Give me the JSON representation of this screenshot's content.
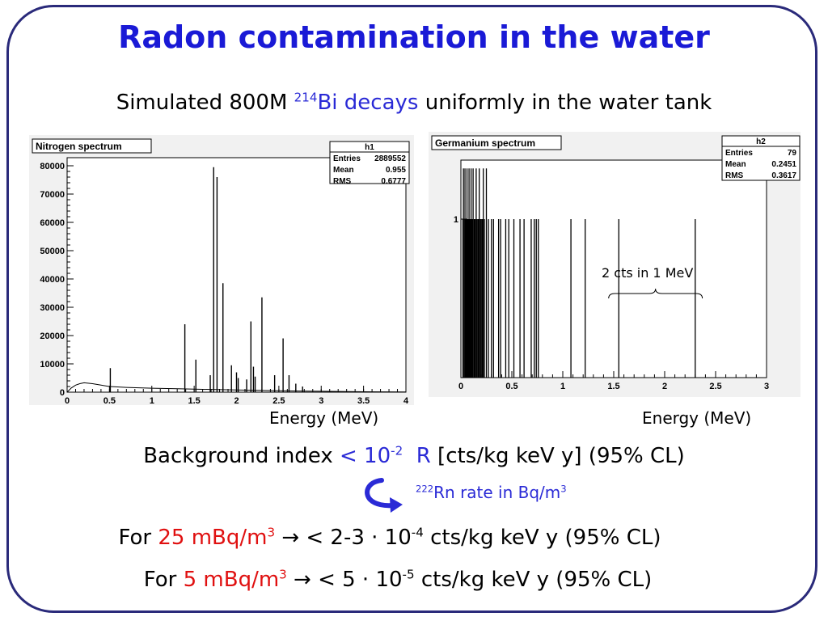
{
  "slide": {
    "title": "Radon contamination in the water",
    "subtitle": {
      "pre": "Simulated 800M ",
      "iso": "214",
      "element": "Bi",
      "mid": " decays",
      "post": " uniformly in the water tank"
    },
    "background": {
      "pre": "Background index ",
      "lt": "< 10",
      "exp": "-2",
      "R": "R",
      "post": " [cts/kg keV y] (95% CL)"
    },
    "rn_note": {
      "iso": "222",
      "text": "Rn rate in Bq/m",
      "exp": "3"
    },
    "for1": {
      "pre": "For ",
      "rate": "25 mBq/m",
      "rate_exp": "3",
      "arrow": " → < 2-3 · 10",
      "exp": "-4",
      "post": "  cts/kg keV y (95% CL)"
    },
    "for2": {
      "pre": "For ",
      "rate": "5 mBq/m",
      "rate_exp": "3",
      "arrow": " → < 5 · 10",
      "exp": "-5",
      "post": "  cts/kg keV y (95% CL)"
    },
    "colors": {
      "title": "#1a1ad6",
      "blue": "#2a2ad6",
      "red": "#e01010",
      "frame": "#2a2a7a"
    }
  },
  "chart_data": [
    {
      "type": "bar",
      "title": "Nitrogen spectrum",
      "xlabel": "Energy (MeV)",
      "xlim": [
        0,
        4
      ],
      "ylim": [
        0,
        80000
      ],
      "xticks": [
        "0",
        "0.5",
        "1",
        "1.5",
        "2",
        "2.5",
        "3",
        "3.5",
        "4"
      ],
      "yticks": [
        "0",
        "10000",
        "20000",
        "30000",
        "40000",
        "50000",
        "60000",
        "70000",
        "80000"
      ],
      "stats": {
        "name": "h1",
        "entries_label": "Entries",
        "entries": "2889552",
        "mean_label": "Mean",
        "mean": "0.955",
        "rms_label": "RMS",
        "rms": "0.6777"
      },
      "continuum": [
        [
          0,
          0
        ],
        [
          0.05,
          1500
        ],
        [
          0.1,
          2500
        ],
        [
          0.15,
          3000
        ],
        [
          0.2,
          3300
        ],
        [
          0.3,
          3000
        ],
        [
          0.4,
          2500
        ],
        [
          0.5,
          2000
        ],
        [
          0.7,
          1700
        ],
        [
          1.0,
          1400
        ],
        [
          1.3,
          1200
        ],
        [
          1.6,
          1000
        ],
        [
          2.0,
          800
        ],
        [
          2.5,
          500
        ],
        [
          3.0,
          300
        ],
        [
          3.5,
          150
        ],
        [
          4.0,
          80
        ]
      ],
      "peaks": [
        {
          "x": 0.51,
          "y": 8500
        },
        {
          "x": 1.39,
          "y": 24000
        },
        {
          "x": 1.52,
          "y": 11500
        },
        {
          "x": 1.69,
          "y": 6000
        },
        {
          "x": 1.73,
          "y": 79500
        },
        {
          "x": 1.77,
          "y": 76000
        },
        {
          "x": 1.84,
          "y": 38500
        },
        {
          "x": 1.94,
          "y": 9500
        },
        {
          "x": 2.0,
          "y": 7000
        },
        {
          "x": 2.02,
          "y": 5000
        },
        {
          "x": 2.12,
          "y": 4500
        },
        {
          "x": 2.17,
          "y": 25000
        },
        {
          "x": 2.2,
          "y": 9000
        },
        {
          "x": 2.22,
          "y": 5500
        },
        {
          "x": 2.3,
          "y": 33500
        },
        {
          "x": 2.45,
          "y": 6000
        },
        {
          "x": 2.55,
          "y": 19000
        },
        {
          "x": 2.62,
          "y": 6000
        },
        {
          "x": 2.7,
          "y": 3000
        },
        {
          "x": 2.78,
          "y": 2000
        }
      ]
    },
    {
      "type": "bar",
      "title": "Germanium spectrum",
      "xlabel": "Energy (MeV)",
      "xlim": [
        0,
        3
      ],
      "ylim": [
        0,
        1.5
      ],
      "xticks": [
        "0",
        "0.5",
        "1",
        "1.5",
        "2",
        "2.5",
        "3"
      ],
      "yticks": [
        "1"
      ],
      "stats": {
        "name": "h2",
        "entries_label": "Entries",
        "entries": "79",
        "mean_label": "Mean",
        "mean": "0.2451",
        "rms_label": "RMS",
        "rms": "0.3617"
      },
      "annotation": "2 cts in 1 MeV",
      "counts_x": [
        0.02,
        0.03,
        0.04,
        0.045,
        0.05,
        0.055,
        0.06,
        0.065,
        0.07,
        0.075,
        0.08,
        0.085,
        0.09,
        0.095,
        0.1,
        0.105,
        0.11,
        0.12,
        0.13,
        0.14,
        0.15,
        0.16,
        0.17,
        0.18,
        0.19,
        0.2,
        0.21,
        0.22,
        0.23,
        0.25,
        0.27,
        0.3,
        0.32,
        0.37,
        0.39,
        0.44,
        0.47,
        0.52,
        0.58,
        0.62,
        0.69,
        0.72,
        0.74,
        0.76,
        1.08,
        1.22,
        1.55,
        2.3
      ],
      "tall_x": [
        0.025,
        0.04,
        0.06,
        0.08,
        0.1,
        0.12,
        0.15,
        0.18,
        0.22,
        0.25
      ]
    }
  ]
}
